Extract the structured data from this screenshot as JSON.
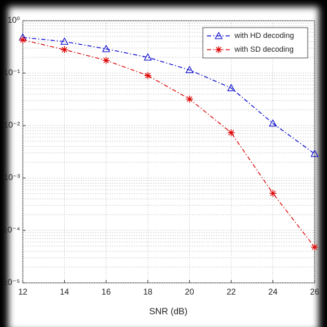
{
  "chart_data": {
    "type": "line",
    "x_label": "SNR (dB)",
    "x": [
      12,
      14,
      16,
      18,
      20,
      22,
      24,
      26
    ],
    "series": [
      {
        "name": "with HD decoding",
        "color": "#0000cc",
        "marker": "triangle",
        "values": [
          0.48,
          0.4,
          0.29,
          0.2,
          0.115,
          0.052,
          0.011,
          0.0029
        ]
      },
      {
        "name": "with SD decoding",
        "color": "#dd0000",
        "marker": "asterisk",
        "values": [
          0.43,
          0.28,
          0.175,
          0.09,
          0.032,
          0.0073,
          0.00051,
          4.8e-05
        ]
      }
    ],
    "xlim": [
      12,
      26
    ],
    "xticks": [
      12,
      14,
      16,
      18,
      20,
      22,
      24,
      26
    ],
    "ylim": [
      1e-05,
      1
    ],
    "yticks": [
      {
        "value": 1e-05,
        "label": "10⁻⁵"
      },
      {
        "value": 0.0001,
        "label": "10⁻⁴"
      },
      {
        "value": 0.001,
        "label": "10⁻³"
      },
      {
        "value": 0.01,
        "label": "10⁻²"
      },
      {
        "value": 0.1,
        "label": "10⁻¹"
      },
      {
        "value": 1,
        "label": "10⁰"
      }
    ],
    "log_y": true,
    "grid": true,
    "legend": "upper right"
  }
}
